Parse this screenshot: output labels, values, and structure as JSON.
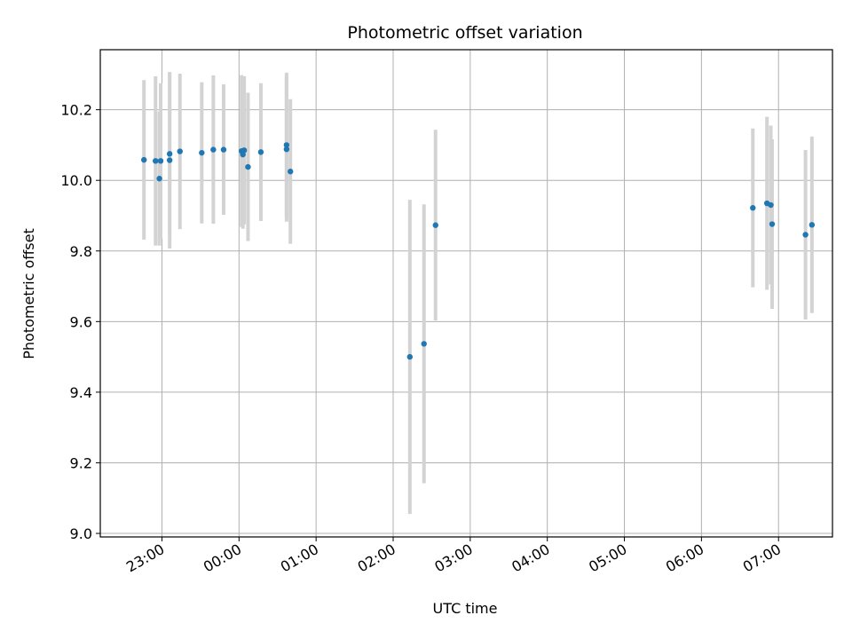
{
  "chart_data": {
    "type": "scatter",
    "title": "Photometric offset variation",
    "xlabel": "UTC time",
    "ylabel": "Photometric offset",
    "x_ticks": [
      "23:00",
      "00:00",
      "01:00",
      "02:00",
      "03:00",
      "04:00",
      "05:00",
      "06:00",
      "07:00"
    ],
    "y_ticks": [
      "9.0",
      "9.2",
      "9.4",
      "9.6",
      "9.8",
      "10.0",
      "10.2"
    ],
    "ylim": [
      8.99,
      10.37
    ],
    "grid": true,
    "legend": false,
    "colors": {
      "points": "#1f77b4",
      "error_bars": "#d3d3d3",
      "grid": "#b0b0b0"
    },
    "points": [
      {
        "x": "22:46",
        "y": 10.058,
        "err": 0.226
      },
      {
        "x": "22:55",
        "y": 10.055,
        "err": 0.24
      },
      {
        "x": "22:58",
        "y": 10.005,
        "err": 0.19
      },
      {
        "x": "22:59",
        "y": 10.055,
        "err": 0.22
      },
      {
        "x": "23:06",
        "y": 10.075,
        "err": 0.23
      },
      {
        "x": "23:06",
        "y": 10.057,
        "err": 0.25
      },
      {
        "x": "23:14",
        "y": 10.082,
        "err": 0.22
      },
      {
        "x": "23:31",
        "y": 10.078,
        "err": 0.2
      },
      {
        "x": "23:40",
        "y": 10.087,
        "err": 0.21
      },
      {
        "x": "23:48",
        "y": 10.087,
        "err": 0.185
      },
      {
        "x": "00:02",
        "y": 10.083,
        "err": 0.215
      },
      {
        "x": "00:03",
        "y": 10.073,
        "err": 0.21
      },
      {
        "x": "00:04",
        "y": 10.085,
        "err": 0.21
      },
      {
        "x": "00:07",
        "y": 10.038,
        "err": 0.21
      },
      {
        "x": "00:17",
        "y": 10.08,
        "err": 0.195
      },
      {
        "x": "00:37",
        "y": 10.088,
        "err": 0.205
      },
      {
        "x": "00:37",
        "y": 10.1,
        "err": 0.205
      },
      {
        "x": "00:40",
        "y": 10.025,
        "err": 0.205
      },
      {
        "x": "02:13",
        "y": 9.5,
        "err": 0.445
      },
      {
        "x": "02:24",
        "y": 9.537,
        "err": 0.395
      },
      {
        "x": "02:33",
        "y": 9.873,
        "err": 0.27
      },
      {
        "x": "06:40",
        "y": 9.922,
        "err": 0.225
      },
      {
        "x": "06:51",
        "y": 9.935,
        "err": 0.245
      },
      {
        "x": "06:54",
        "y": 9.93,
        "err": 0.225
      },
      {
        "x": "06:55",
        "y": 9.876,
        "err": 0.24
      },
      {
        "x": "07:21",
        "y": 9.846,
        "err": 0.24
      },
      {
        "x": "07:26",
        "y": 9.874,
        "err": 0.25
      }
    ]
  }
}
